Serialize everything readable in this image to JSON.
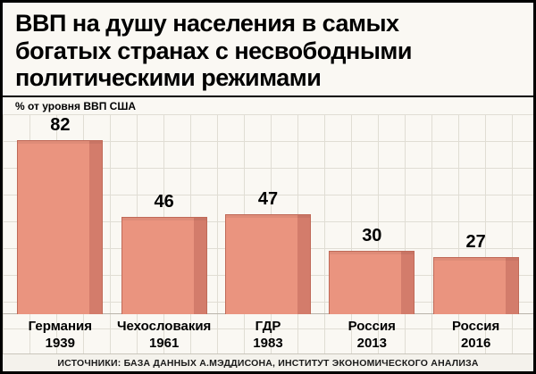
{
  "chart_data": {
    "type": "bar",
    "title": "ВВП на душу населения в самых\nбогатых странах с несвободными\nполитическими режимами",
    "ylabel": "% от уровня ВВП США",
    "categories": [
      "Германия\n1939",
      "Чехословакия\n1961",
      "ГДР\n1983",
      "Россия\n2013",
      "Россия\n2016"
    ],
    "values": [
      82,
      46,
      47,
      30,
      27
    ],
    "ylim": [
      0,
      90
    ],
    "grid": true,
    "legend": "none",
    "source": "ИСТОЧНИКИ: БАЗА ДАННЫХ А.МЭДДИСОНА, ИНСТИТУТ ЭКОНОМИЧЕСКОГО АНАЛИЗА",
    "colors": {
      "bar_main": "#ea947f",
      "bar_side": "#d37c6b",
      "bar_border": "#c06a58",
      "grid_line": "#e0ddd4",
      "background": "#faf8f3",
      "text": "#000000"
    }
  }
}
